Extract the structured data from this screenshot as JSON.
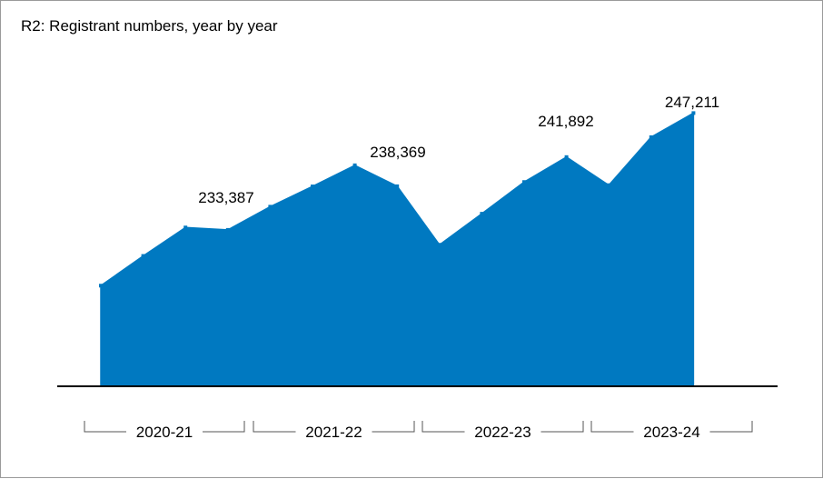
{
  "chart_data": {
    "type": "area",
    "title": "R2: Registrant numbers, year by year",
    "xlabel": "",
    "ylabel": "",
    "color": "#0079C1",
    "axis_color": "#000000",
    "bracket_color": "#555555",
    "groups": [
      "2020-21",
      "2021-22",
      "2022-23",
      "2023-24"
    ],
    "values": [
      226360,
      229950,
      233387,
      233100,
      235900,
      238350,
      240900,
      238369,
      231300,
      235050,
      238880,
      241892,
      238500,
      244300,
      247211
    ],
    "data_labels": [
      {
        "index": 2,
        "text": "233,387"
      },
      {
        "index": 7,
        "text": "238,369"
      },
      {
        "index": 11,
        "text": "241,892"
      },
      {
        "index": 14,
        "text": "247,211"
      }
    ],
    "ylim": [
      214200,
      250000
    ],
    "grid": false,
    "legend": "none"
  }
}
